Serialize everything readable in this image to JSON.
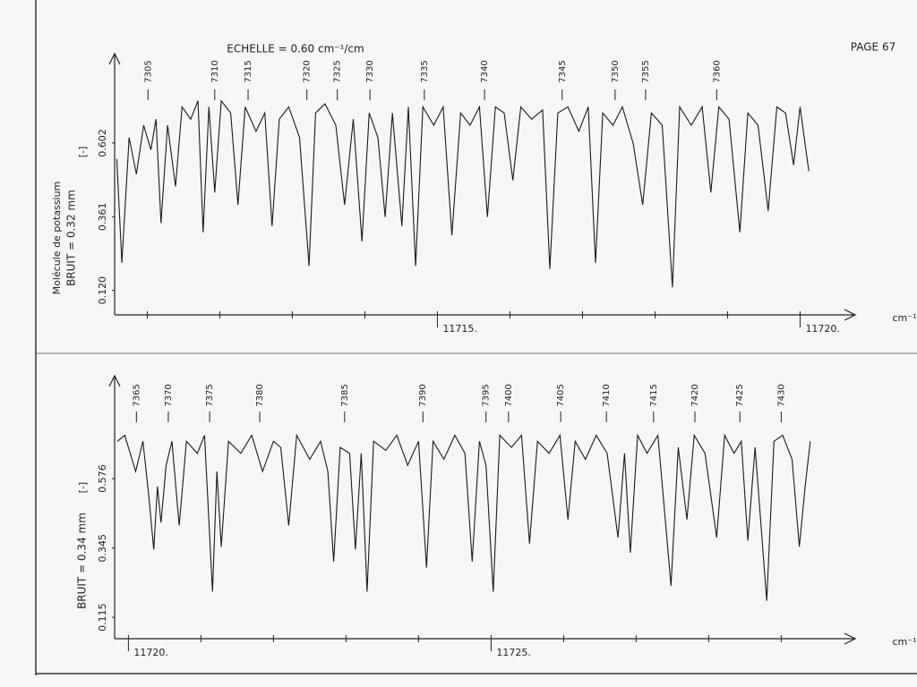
{
  "header": {
    "scale": "ECHELLE = 0.60 cm⁻¹/cm",
    "page": "PAGE 67"
  },
  "chart_data": [
    {
      "type": "line",
      "caption": "Molécule de potassium",
      "ylabel": "BRUIT = 0.32 mm",
      "unit_marker": "[-]",
      "xlabel": "cm⁻¹",
      "xlim": [
        11710.55,
        11720.76
      ],
      "ylim": [
        0.04,
        0.894
      ],
      "xticks": [
        {
          "value": 11715,
          "label": "11715."
        },
        {
          "value": 11720,
          "label": "11720."
        }
      ],
      "xminor": [
        11711,
        11712,
        11713,
        11714,
        11716,
        11717,
        11718,
        11719
      ],
      "yticks": [
        {
          "value": 0.12,
          "label": "0.120"
        },
        0.361,
        0.602
      ],
      "lines": {
        "x": [
          11711.01,
          11711.93,
          11712.39,
          11713.2,
          11713.62,
          11714.07,
          11714.82,
          11715.65,
          11716.72,
          11717.45,
          11717.87,
          11718.85
        ],
        "labels": [
          7305,
          7310,
          7315,
          7320,
          7325,
          7330,
          7335,
          7340,
          7345,
          7350,
          7355,
          7360
        ]
      },
      "x": [
        11710.58,
        11710.65,
        11710.75,
        11710.85,
        11710.95,
        11711.05,
        11711.12,
        11711.19,
        11711.28,
        11711.39,
        11711.48,
        11711.6,
        11711.7,
        11711.77,
        11711.85,
        11711.93,
        11712.02,
        11712.15,
        11712.25,
        11712.35,
        11712.5,
        11712.62,
        11712.72,
        11712.82,
        11712.95,
        11713.1,
        11713.23,
        11713.32,
        11713.45,
        11713.6,
        11713.72,
        11713.84,
        11713.96,
        11714.06,
        11714.18,
        11714.28,
        11714.38,
        11714.51,
        11714.6,
        11714.7,
        11714.8,
        11714.95,
        11715.08,
        11715.2,
        11715.32,
        11715.45,
        11715.58,
        11715.69,
        11715.8,
        11715.92,
        11716.04,
        11716.15,
        11716.3,
        11716.45,
        11716.55,
        11716.66,
        11716.8,
        11716.95,
        11717.08,
        11717.18,
        11717.28,
        11717.42,
        11717.55,
        11717.7,
        11717.83,
        11717.95,
        11718.1,
        11718.24,
        11718.34,
        11718.5,
        11718.65,
        11718.77,
        11718.88,
        11719.02,
        11719.17,
        11719.28,
        11719.42,
        11719.56,
        11719.68,
        11719.8,
        11719.91,
        11720.0,
        11720.12
      ],
      "series": [
        {
          "color": "#1a1a1a",
          "values": [
            0.55,
            0.21,
            0.62,
            0.5,
            0.66,
            0.58,
            0.68,
            0.34,
            0.66,
            0.46,
            0.72,
            0.68,
            0.74,
            0.31,
            0.72,
            0.44,
            0.74,
            0.7,
            0.4,
            0.72,
            0.64,
            0.7,
            0.33,
            0.68,
            0.72,
            0.62,
            0.2,
            0.7,
            0.73,
            0.66,
            0.4,
            0.68,
            0.28,
            0.7,
            0.62,
            0.36,
            0.7,
            0.33,
            0.72,
            0.2,
            0.72,
            0.66,
            0.72,
            0.3,
            0.7,
            0.66,
            0.72,
            0.36,
            0.72,
            0.7,
            0.48,
            0.72,
            0.68,
            0.71,
            0.19,
            0.7,
            0.72,
            0.64,
            0.72,
            0.21,
            0.7,
            0.66,
            0.72,
            0.6,
            0.4,
            0.7,
            0.66,
            0.13,
            0.72,
            0.66,
            0.72,
            0.44,
            0.72,
            0.68,
            0.31,
            0.7,
            0.66,
            0.38,
            0.72,
            0.7,
            0.53,
            0.72,
            0.51
          ]
        }
      ]
    },
    {
      "type": "line",
      "ylabel": "BRUIT = 0.34 mm",
      "unit_marker": "[-]",
      "xlabel": "cm⁻¹",
      "xlim": [
        11719.81,
        11730.02
      ],
      "ylim": [
        0.044,
        0.918
      ],
      "xticks": [
        {
          "value": 11720,
          "label": "11720."
        },
        {
          "value": 11725,
          "label": "11725."
        }
      ],
      "xminor": [
        11721,
        11722,
        11723,
        11724,
        11726,
        11727,
        11728,
        11729
      ],
      "yticks": [
        0.115,
        0.345,
        0.576
      ],
      "lines": {
        "x": [
          11720.11,
          11720.55,
          11721.12,
          11721.81,
          11722.98,
          11724.06,
          11724.93,
          11725.24,
          11725.96,
          11726.59,
          11727.24,
          11727.81,
          11728.43,
          11729.0
        ],
        "labels": [
          7365,
          7370,
          7375,
          7380,
          7385,
          7390,
          7395,
          7400,
          7405,
          7410,
          7415,
          7420,
          7425,
          7430
        ]
      },
      "x": [
        11719.85,
        11719.95,
        11720.1,
        11720.2,
        11720.28,
        11720.35,
        11720.4,
        11720.45,
        11720.52,
        11720.6,
        11720.7,
        11720.8,
        11720.95,
        11721.05,
        11721.16,
        11721.22,
        11721.28,
        11721.38,
        11721.55,
        11721.7,
        11721.85,
        11722.0,
        11722.1,
        11722.21,
        11722.32,
        11722.5,
        11722.65,
        11722.75,
        11722.83,
        11722.92,
        11723.05,
        11723.13,
        11723.21,
        11723.29,
        11723.38,
        11723.55,
        11723.7,
        11723.85,
        11724.0,
        11724.11,
        11724.2,
        11724.35,
        11724.5,
        11724.64,
        11724.74,
        11724.84,
        11724.93,
        11725.03,
        11725.12,
        11725.28,
        11725.42,
        11725.53,
        11725.64,
        11725.8,
        11725.95,
        11726.06,
        11726.16,
        11726.3,
        11726.45,
        11726.6,
        11726.75,
        11726.84,
        11726.92,
        11727.02,
        11727.15,
        11727.3,
        11727.48,
        11727.58,
        11727.7,
        11727.8,
        11727.95,
        11728.11,
        11728.22,
        11728.35,
        11728.45,
        11728.54,
        11728.64,
        11728.8,
        11728.9,
        11729.02,
        11729.15,
        11729.25,
        11729.33,
        11729.4
      ],
      "series": [
        {
          "color": "#1a1a1a",
          "values": [
            0.7,
            0.72,
            0.6,
            0.7,
            0.52,
            0.34,
            0.55,
            0.43,
            0.62,
            0.7,
            0.42,
            0.7,
            0.66,
            0.72,
            0.2,
            0.6,
            0.35,
            0.7,
            0.66,
            0.72,
            0.6,
            0.7,
            0.68,
            0.42,
            0.72,
            0.64,
            0.7,
            0.6,
            0.3,
            0.68,
            0.66,
            0.34,
            0.66,
            0.2,
            0.7,
            0.67,
            0.72,
            0.62,
            0.7,
            0.28,
            0.7,
            0.64,
            0.72,
            0.66,
            0.3,
            0.7,
            0.62,
            0.2,
            0.72,
            0.68,
            0.72,
            0.36,
            0.7,
            0.66,
            0.72,
            0.44,
            0.7,
            0.64,
            0.72,
            0.66,
            0.38,
            0.66,
            0.33,
            0.72,
            0.66,
            0.72,
            0.22,
            0.68,
            0.44,
            0.72,
            0.66,
            0.38,
            0.72,
            0.66,
            0.7,
            0.37,
            0.68,
            0.17,
            0.7,
            0.72,
            0.64,
            0.35,
            0.55,
            0.7
          ]
        }
      ]
    }
  ]
}
